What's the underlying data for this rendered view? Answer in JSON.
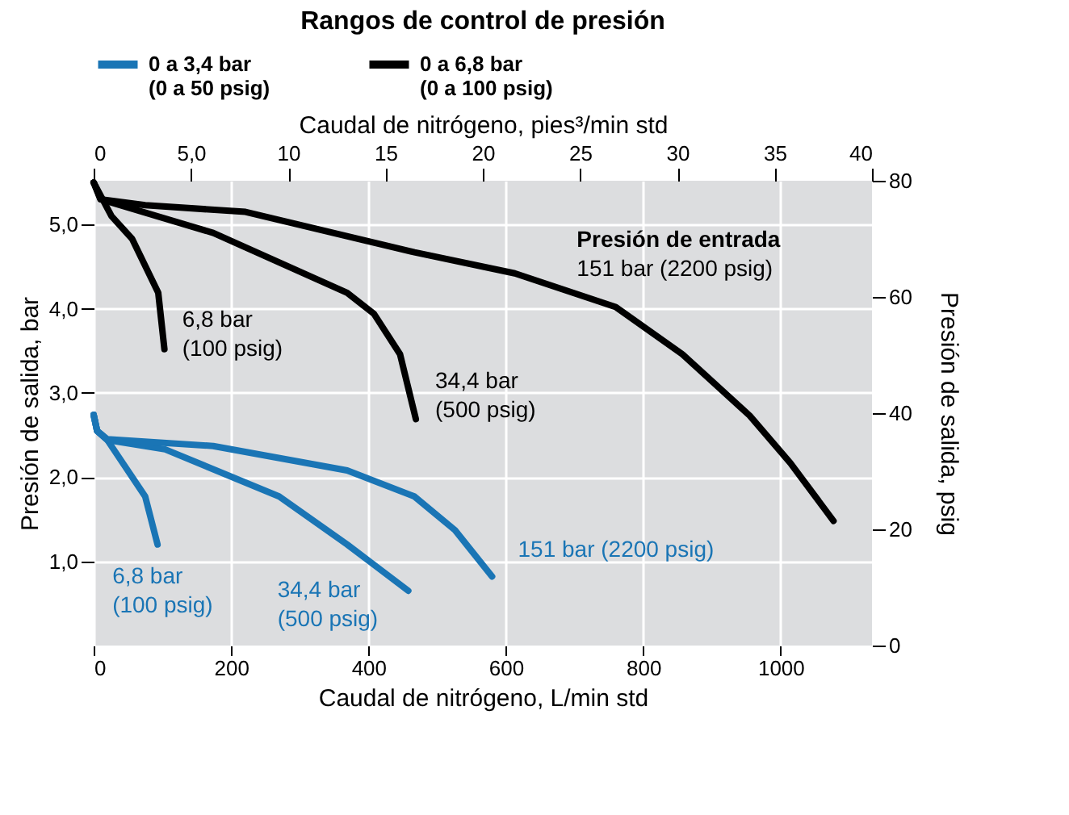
{
  "chart_data": {
    "type": "line",
    "title": "Rangos de control de presión",
    "xlabel": "Caudal de nitrógeno, L/min std",
    "x2label": "Caudal de nitrógeno, pies³/min std",
    "ylabel": "Presión de salida, bar",
    "y2label": "Presión de salida, psig",
    "xlim": [
      0,
      1133
    ],
    "xticks": [
      0,
      200,
      400,
      600,
      800,
      1000
    ],
    "x2lim": [
      0,
      40
    ],
    "x2ticks": [
      0,
      {
        "value": 5,
        "label": "5,0"
      },
      10,
      15,
      20,
      25,
      30,
      35,
      40
    ],
    "ylim": [
      0,
      5.52
    ],
    "yticks": [
      {
        "value": 1,
        "label": "1,0"
      },
      {
        "value": 2,
        "label": "2,0"
      },
      {
        "value": 3,
        "label": "3,0"
      },
      {
        "value": 4,
        "label": "4,0"
      },
      {
        "value": 5,
        "label": "5,0"
      }
    ],
    "y2lim": [
      0,
      80
    ],
    "y2ticks": [
      0,
      20,
      40,
      60,
      80
    ],
    "grid": true,
    "legend": "top",
    "marker": "none",
    "line_style": "solid",
    "series": [
      {
        "name": "0 a 3,4 bar\n(0 a 50 psig)",
        "color": "#1a75b5",
        "x": [
          0,
          5,
          20,
          75,
          93
        ],
        "values": [
          2.74,
          2.55,
          2.44,
          1.77,
          1.2
        ]
      },
      {
        "color": "#1a75b5",
        "x": [
          0,
          5,
          20,
          104,
          270,
          369,
          408,
          458
        ],
        "values": [
          2.74,
          2.55,
          2.44,
          2.33,
          1.77,
          1.2,
          0.96,
          0.65
        ]
      },
      {
        "color": "#1a75b5",
        "x": [
          0,
          5,
          20,
          174,
          369,
          467,
          526,
          580
        ],
        "values": [
          2.74,
          2.55,
          2.45,
          2.37,
          2.08,
          1.77,
          1.37,
          0.82
        ]
      },
      {
        "name": "0 a 6,8 bar\n(0 a 100 psig)",
        "color": "#000000",
        "x": [
          0,
          26,
          56,
          94,
          103
        ],
        "values": [
          5.5,
          5.1,
          4.83,
          4.19,
          3.52
        ]
      },
      {
        "color": "#000000",
        "x": [
          0,
          10,
          174,
          369,
          408,
          446,
          469
        ],
        "values": [
          5.5,
          5.3,
          4.9,
          4.19,
          3.94,
          3.46,
          2.69
        ]
      },
      {
        "color": "#000000",
        "x": [
          0,
          10,
          75,
          221,
          467,
          613,
          760,
          857,
          955,
          1014,
          1077
        ],
        "values": [
          5.5,
          5.3,
          5.23,
          5.15,
          4.67,
          4.42,
          4.02,
          3.46,
          2.73,
          2.17,
          1.48
        ]
      }
    ],
    "annotations": [
      "6,8 bar\n(100 psig)",
      "34,4 bar\n(500 psig)",
      "151 bar (2200 psig)",
      "6,8 bar\n(100 psig)",
      "34,4 bar\n(500 psig)",
      "151 bar (2200 psig)",
      "Presión de entrada"
    ]
  }
}
